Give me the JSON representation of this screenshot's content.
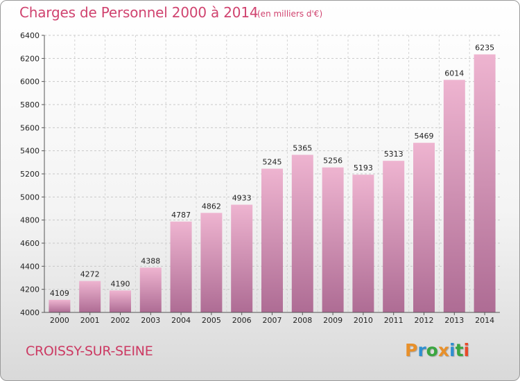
{
  "title": "Charges de Personnel 2000 à 2014",
  "subtitle": "(en milliers d'€)",
  "footer": {
    "city": "CROISSY-SUR-SEINE",
    "logo_letters": [
      "P",
      "r",
      "o",
      "x",
      "i",
      "t",
      "i"
    ],
    "logo_colors": [
      "#e8902a",
      "#2f8fd0",
      "#3aa640",
      "#e8902a",
      "#2f8fd0",
      "#3aa640",
      "#e84a2a"
    ]
  },
  "colors": {
    "bar_light": "#eeb4d0",
    "bar_dark": "#ae6c94",
    "text_accent": "#d0436f"
  },
  "chart_data": {
    "type": "bar",
    "categories": [
      "2000",
      "2001",
      "2002",
      "2003",
      "2004",
      "2005",
      "2006",
      "2007",
      "2008",
      "2009",
      "2010",
      "2011",
      "2012",
      "2013",
      "2014"
    ],
    "values": [
      4109,
      4272,
      4190,
      4388,
      4787,
      4862,
      4933,
      5245,
      5365,
      5256,
      5193,
      5313,
      5469,
      6014,
      6235
    ],
    "ylim": [
      4000,
      6400
    ],
    "yticks": [
      4000,
      4200,
      4400,
      4600,
      4800,
      5000,
      5200,
      5400,
      5600,
      5800,
      6000,
      6200,
      6400
    ],
    "grid": true,
    "xlabel": "",
    "ylabel": ""
  }
}
